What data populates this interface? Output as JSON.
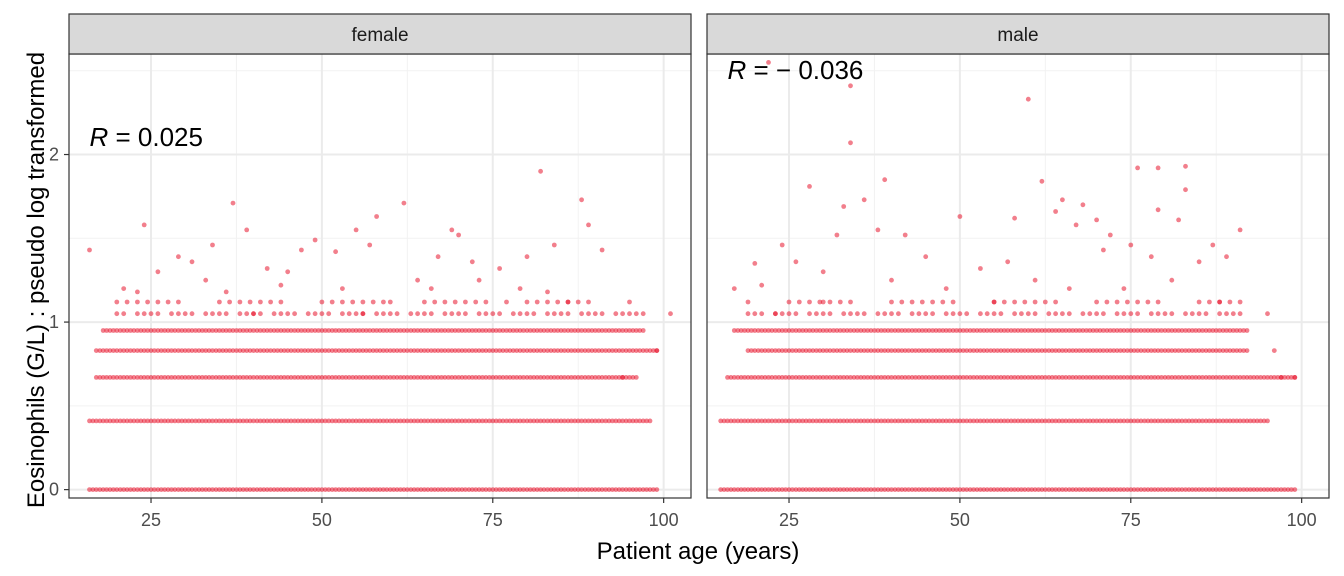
{
  "chart_data": {
    "type": "scatter",
    "xlabel": "Patient age (years)",
    "ylabel": "Eosinophils (G/L) : pseudo log transformed",
    "y_scale": "pseudo log",
    "xlim": [
      13,
      104
    ],
    "ylim": [
      -0.05,
      2.6
    ],
    "x_ticks": [
      25,
      50,
      75,
      100
    ],
    "y_ticks": [
      0,
      1,
      2
    ],
    "grid": true,
    "legend": "none",
    "point_color": "#e8162e",
    "facets": [
      {
        "name": "female",
        "annotation_prefix": "R",
        "annotation_value": " = 0.025",
        "annotation_x": 16,
        "annotation_y": 2.05,
        "bands": [
          {
            "y": 0.0,
            "x_min": 16,
            "x_max": 99
          },
          {
            "y": 0.41,
            "x_min": 16,
            "x_max": 98
          },
          {
            "y": 0.67,
            "x_min": 17,
            "x_max": 96
          },
          {
            "y": 0.83,
            "x_min": 17,
            "x_max": 99
          },
          {
            "y": 0.95,
            "x_min": 18,
            "x_max": 97
          }
        ],
        "scatter": [
          [
            16,
            1.43
          ],
          [
            24,
            1.58
          ],
          [
            37,
            1.71
          ],
          [
            39,
            1.55
          ],
          [
            34,
            1.46
          ],
          [
            29,
            1.39
          ],
          [
            31,
            1.36
          ],
          [
            42,
            1.32
          ],
          [
            47,
            1.43
          ],
          [
            49,
            1.49
          ],
          [
            52,
            1.42
          ],
          [
            55,
            1.55
          ],
          [
            57,
            1.46
          ],
          [
            58,
            1.63
          ],
          [
            62,
            1.71
          ],
          [
            67,
            1.39
          ],
          [
            69,
            1.55
          ],
          [
            70,
            1.52
          ],
          [
            72,
            1.36
          ],
          [
            76,
            1.32
          ],
          [
            80,
            1.39
          ],
          [
            82,
            1.9
          ],
          [
            84,
            1.46
          ],
          [
            88,
            1.73
          ],
          [
            89,
            1.58
          ],
          [
            91,
            1.43
          ],
          [
            101,
            1.05
          ],
          [
            97,
            1.05
          ],
          [
            99,
            0.83
          ],
          [
            94,
            0.67
          ],
          [
            44,
            1.22
          ],
          [
            53,
            1.2
          ],
          [
            60,
            1.12
          ],
          [
            66,
            1.2
          ],
          [
            73,
            1.25
          ],
          [
            79,
            1.2
          ],
          [
            86,
            1.12
          ],
          [
            26,
            1.3
          ],
          [
            33,
            1.25
          ],
          [
            45,
            1.3
          ],
          [
            36,
            1.18
          ],
          [
            64,
            1.25
          ],
          [
            83,
            1.18
          ],
          [
            21,
            1.2
          ],
          [
            23,
            1.18
          ],
          [
            40,
            1.05
          ],
          [
            56,
            1.05
          ],
          [
            77,
            1.12
          ]
        ]
      },
      {
        "name": "male",
        "annotation_prefix": "R",
        "annotation_value": " = − 0.036",
        "annotation_x": 16,
        "annotation_y": 2.45,
        "bands": [
          {
            "y": 0.0,
            "x_min": 15,
            "x_max": 99
          },
          {
            "y": 0.41,
            "x_min": 15,
            "x_max": 95
          },
          {
            "y": 0.67,
            "x_min": 16,
            "x_max": 99
          },
          {
            "y": 0.83,
            "x_min": 19,
            "x_max": 92
          },
          {
            "y": 0.95,
            "x_min": 17,
            "x_max": 92
          }
        ],
        "scatter": [
          [
            22,
            2.55
          ],
          [
            34,
            2.41
          ],
          [
            34,
            2.07
          ],
          [
            60,
            2.33
          ],
          [
            28,
            1.81
          ],
          [
            33,
            1.69
          ],
          [
            36,
            1.73
          ],
          [
            39,
            1.85
          ],
          [
            62,
            1.84
          ],
          [
            65,
            1.73
          ],
          [
            68,
            1.7
          ],
          [
            76,
            1.92
          ],
          [
            79,
            1.92
          ],
          [
            83,
            1.93
          ],
          [
            79,
            1.67
          ],
          [
            83,
            1.79
          ],
          [
            82,
            1.61
          ],
          [
            91,
            1.55
          ],
          [
            24,
            1.46
          ],
          [
            32,
            1.52
          ],
          [
            38,
            1.55
          ],
          [
            42,
            1.52
          ],
          [
            50,
            1.63
          ],
          [
            58,
            1.62
          ],
          [
            64,
            1.66
          ],
          [
            67,
            1.58
          ],
          [
            70,
            1.61
          ],
          [
            72,
            1.52
          ],
          [
            75,
            1.46
          ],
          [
            87,
            1.46
          ],
          [
            96,
            0.83
          ],
          [
            97,
            0.67
          ],
          [
            99,
            0.67
          ],
          [
            95,
            1.05
          ],
          [
            20,
            1.35
          ],
          [
            26,
            1.36
          ],
          [
            30,
            1.3
          ],
          [
            45,
            1.39
          ],
          [
            53,
            1.32
          ],
          [
            57,
            1.36
          ],
          [
            71,
            1.43
          ],
          [
            78,
            1.39
          ],
          [
            85,
            1.36
          ],
          [
            89,
            1.39
          ],
          [
            17,
            1.2
          ],
          [
            21,
            1.22
          ],
          [
            30,
            1.12
          ],
          [
            40,
            1.25
          ],
          [
            48,
            1.2
          ],
          [
            61,
            1.25
          ],
          [
            74,
            1.2
          ],
          [
            81,
            1.25
          ],
          [
            88,
            1.12
          ],
          [
            23,
            1.05
          ],
          [
            55,
            1.12
          ],
          [
            66,
            1.2
          ]
        ]
      }
    ]
  }
}
